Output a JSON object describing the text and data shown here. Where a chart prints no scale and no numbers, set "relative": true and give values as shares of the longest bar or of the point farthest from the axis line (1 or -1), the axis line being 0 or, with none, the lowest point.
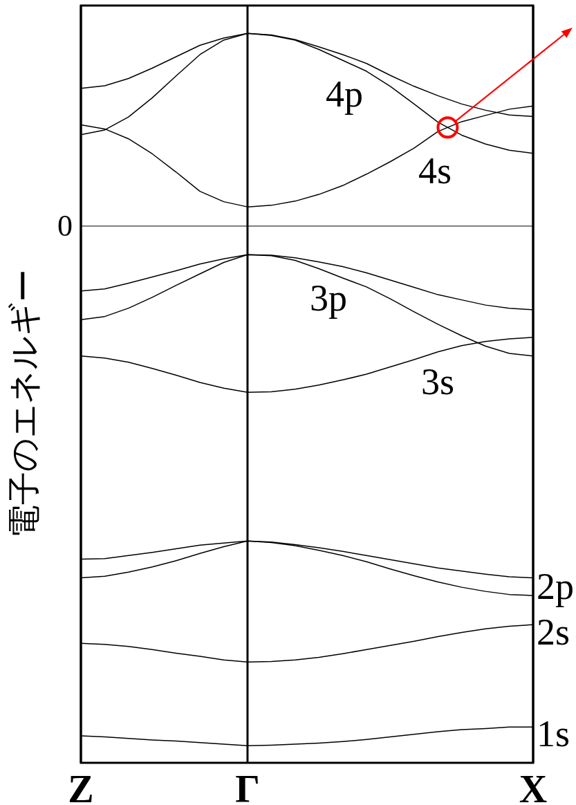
{
  "chart_data": {
    "type": "line",
    "relative": true,
    "ylabel": "電子のエネルギー",
    "categories": [
      "Z",
      null,
      null,
      null,
      null,
      null,
      null,
      "Γ",
      null,
      null,
      null,
      null,
      null,
      null,
      null,
      null,
      null,
      null,
      null,
      "X"
    ],
    "grid": "x",
    "ref_lines": [
      {
        "axis": "y",
        "value": 0,
        "label": "0",
        "color": "#000000"
      }
    ],
    "series": [
      {
        "color": "#000000",
        "values": [
          0.265,
          0.27,
          0.284,
          0.304,
          0.326,
          0.348,
          0.362,
          0.371,
          0.368,
          0.359,
          0.345,
          0.33,
          0.313,
          0.29,
          0.269,
          0.251,
          0.235,
          0.223,
          0.214,
          0.211
        ]
      },
      {
        "color": "#000000",
        "values": [
          0.176,
          0.185,
          0.21,
          0.247,
          0.289,
          0.33,
          0.358,
          0.371,
          0.367,
          0.358,
          0.34,
          0.319,
          0.298,
          0.269,
          0.235,
          0.2,
          0.175,
          0.158,
          0.146,
          0.14
        ]
      },
      {
        "color": "#000000",
        "values": [
          0.195,
          0.187,
          0.168,
          0.139,
          0.104,
          0.067,
          0.047,
          0.037,
          0.04,
          0.048,
          0.061,
          0.078,
          0.1,
          0.124,
          0.15,
          0.182,
          0.201,
          0.213,
          0.225,
          0.231
        ]
      },
      {
        "color": "#000000",
        "values": [
          -0.125,
          -0.121,
          -0.11,
          -0.098,
          -0.086,
          -0.073,
          -0.063,
          -0.055,
          -0.056,
          -0.061,
          -0.069,
          -0.078,
          -0.09,
          -0.104,
          -0.118,
          -0.132,
          -0.142,
          -0.152,
          -0.158,
          -0.161
        ]
      },
      {
        "color": "#000000",
        "values": [
          -0.18,
          -0.174,
          -0.158,
          -0.137,
          -0.114,
          -0.092,
          -0.07,
          -0.055,
          -0.057,
          -0.066,
          -0.082,
          -0.1,
          -0.117,
          -0.14,
          -0.165,
          -0.189,
          -0.211,
          -0.231,
          -0.245,
          -0.25
        ]
      },
      {
        "color": "#000000",
        "values": [
          -0.25,
          -0.254,
          -0.262,
          -0.274,
          -0.287,
          -0.301,
          -0.312,
          -0.32,
          -0.319,
          -0.314,
          -0.306,
          -0.296,
          -0.285,
          -0.271,
          -0.257,
          -0.242,
          -0.23,
          -0.222,
          -0.217,
          -0.214
        ]
      },
      {
        "color": "#000000",
        "values": [
          -0.641,
          -0.64,
          -0.634,
          -0.628,
          -0.621,
          -0.614,
          -0.61,
          -0.606,
          -0.608,
          -0.613,
          -0.619,
          -0.626,
          -0.634,
          -0.642,
          -0.65,
          -0.658,
          -0.664,
          -0.67,
          -0.675,
          -0.677
        ]
      },
      {
        "color": "#000000",
        "values": [
          -0.677,
          -0.674,
          -0.666,
          -0.656,
          -0.644,
          -0.63,
          -0.617,
          -0.606,
          -0.609,
          -0.615,
          -0.624,
          -0.634,
          -0.646,
          -0.66,
          -0.673,
          -0.685,
          -0.695,
          -0.703,
          -0.709,
          -0.711
        ]
      },
      {
        "color": "#000000",
        "values": [
          -0.803,
          -0.805,
          -0.809,
          -0.815,
          -0.822,
          -0.828,
          -0.835,
          -0.839,
          -0.838,
          -0.835,
          -0.83,
          -0.823,
          -0.815,
          -0.807,
          -0.799,
          -0.79,
          -0.782,
          -0.775,
          -0.77,
          -0.767
        ]
      },
      {
        "color": "#000000",
        "values": [
          -0.981,
          -0.983,
          -0.986,
          -0.989,
          -0.991,
          -0.994,
          -0.997,
          -1.0,
          -0.999,
          -0.997,
          -0.995,
          -0.992,
          -0.988,
          -0.983,
          -0.978,
          -0.973,
          -0.969,
          -0.967,
          -0.964,
          -0.964
        ]
      }
    ],
    "annotations": [
      "4p",
      "4s",
      "3p",
      "3s",
      "2p",
      "2s",
      "1s"
    ]
  }
}
